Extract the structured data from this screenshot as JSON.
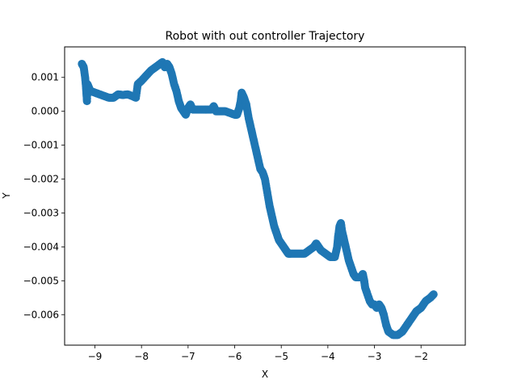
{
  "chart_data": {
    "type": "scatter",
    "title": "Robot with out controller Trajectory",
    "xlabel": "X",
    "ylabel": "Y",
    "xlim": [
      -9.65,
      -1.05
    ],
    "ylim": [
      -0.0069,
      0.0019
    ],
    "xticks": [
      -9,
      -8,
      -7,
      -6,
      -5,
      -4,
      -3,
      -2
    ],
    "xtick_labels": [
      "−9",
      "−8",
      "−7",
      "−6",
      "−5",
      "−4",
      "−3",
      "−2"
    ],
    "yticks": [
      0.001,
      0.0,
      -0.001,
      -0.002,
      -0.003,
      -0.004,
      -0.005,
      -0.006
    ],
    "ytick_labels": [
      "0.001",
      "0.000",
      "−0.001",
      "−0.002",
      "−0.003",
      "−0.004",
      "−0.005",
      "−0.006"
    ],
    "grid": false,
    "marker_color": "#1f77b4",
    "series": [
      {
        "points": [
          [
            -9.28,
            0.0014
          ],
          [
            -9.24,
            0.0013
          ],
          [
            -9.21,
            0.001
          ],
          [
            -9.19,
            0.0007
          ],
          [
            -9.18,
            0.0005
          ],
          [
            -9.17,
            0.0003
          ],
          [
            -9.16,
            0.0008
          ],
          [
            -9.13,
            0.0007
          ],
          [
            -9.1,
            0.0006
          ],
          [
            -9.0,
            0.00055
          ],
          [
            -8.9,
            0.0005
          ],
          [
            -8.8,
            0.00045
          ],
          [
            -8.7,
            0.0004
          ],
          [
            -8.6,
            0.0004
          ],
          [
            -8.5,
            0.0005
          ],
          [
            -8.4,
            0.00048
          ],
          [
            -8.3,
            0.0005
          ],
          [
            -8.2,
            0.00045
          ],
          [
            -8.12,
            0.0004
          ],
          [
            -8.08,
            0.0008
          ],
          [
            -8.0,
            0.0009
          ],
          [
            -7.9,
            0.00105
          ],
          [
            -7.8,
            0.0012
          ],
          [
            -7.7,
            0.0013
          ],
          [
            -7.6,
            0.0014
          ],
          [
            -7.55,
            0.00145
          ],
          [
            -7.5,
            0.0013
          ],
          [
            -7.45,
            0.0014
          ],
          [
            -7.4,
            0.0013
          ],
          [
            -7.35,
            0.0011
          ],
          [
            -7.3,
            0.0008
          ],
          [
            -7.25,
            0.0006
          ],
          [
            -7.2,
            0.0003
          ],
          [
            -7.15,
            0.0001
          ],
          [
            -7.1,
            0.0
          ],
          [
            -7.05,
            -0.0001
          ],
          [
            -7.0,
            0.0001
          ],
          [
            -6.95,
            0.0002
          ],
          [
            -6.9,
            5e-05
          ],
          [
            -6.8,
            5e-05
          ],
          [
            -6.7,
            5e-05
          ],
          [
            -6.6,
            5e-05
          ],
          [
            -6.5,
            5e-05
          ],
          [
            -6.45,
            0.00015
          ],
          [
            -6.4,
            0.0
          ],
          [
            -6.3,
            0.0
          ],
          [
            -6.2,
            0.0
          ],
          [
            -6.1,
            -5e-05
          ],
          [
            -6.0,
            -0.0001
          ],
          [
            -5.95,
            -0.0001
          ],
          [
            -5.9,
            0.0001
          ],
          [
            -5.87,
            0.0003
          ],
          [
            -5.85,
            0.00055
          ],
          [
            -5.8,
            0.0004
          ],
          [
            -5.75,
            0.0002
          ],
          [
            -5.7,
            -0.0002
          ],
          [
            -5.65,
            -0.0005
          ],
          [
            -5.6,
            -0.0008
          ],
          [
            -5.55,
            -0.0011
          ],
          [
            -5.5,
            -0.0014
          ],
          [
            -5.45,
            -0.0017
          ],
          [
            -5.4,
            -0.0018
          ],
          [
            -5.35,
            -0.002
          ],
          [
            -5.3,
            -0.0024
          ],
          [
            -5.25,
            -0.0028
          ],
          [
            -5.2,
            -0.0031
          ],
          [
            -5.15,
            -0.0034
          ],
          [
            -5.1,
            -0.0036
          ],
          [
            -5.05,
            -0.0038
          ],
          [
            -5.0,
            -0.0039
          ],
          [
            -4.95,
            -0.004
          ],
          [
            -4.9,
            -0.0041
          ],
          [
            -4.85,
            -0.0042
          ],
          [
            -4.8,
            -0.0042
          ],
          [
            -4.7,
            -0.0042
          ],
          [
            -4.6,
            -0.0042
          ],
          [
            -4.5,
            -0.0042
          ],
          [
            -4.4,
            -0.0041
          ],
          [
            -4.3,
            -0.004
          ],
          [
            -4.25,
            -0.0039
          ],
          [
            -4.2,
            -0.004
          ],
          [
            -4.15,
            -0.0041
          ],
          [
            -4.05,
            -0.0042
          ],
          [
            -3.95,
            -0.0043
          ],
          [
            -3.85,
            -0.0043
          ],
          [
            -3.8,
            -0.004
          ],
          [
            -3.78,
            -0.0037
          ],
          [
            -3.75,
            -0.0034
          ],
          [
            -3.72,
            -0.0033
          ],
          [
            -3.7,
            -0.0035
          ],
          [
            -3.65,
            -0.0038
          ],
          [
            -3.6,
            -0.0041
          ],
          [
            -3.55,
            -0.0044
          ],
          [
            -3.5,
            -0.0046
          ],
          [
            -3.45,
            -0.0048
          ],
          [
            -3.4,
            -0.0049
          ],
          [
            -3.3,
            -0.0049
          ],
          [
            -3.25,
            -0.0048
          ],
          [
            -3.22,
            -0.005
          ],
          [
            -3.2,
            -0.0052
          ],
          [
            -3.15,
            -0.0054
          ],
          [
            -3.1,
            -0.0056
          ],
          [
            -3.05,
            -0.0057
          ],
          [
            -3.0,
            -0.0057
          ],
          [
            -2.95,
            -0.0058
          ],
          [
            -2.9,
            -0.0057
          ],
          [
            -2.85,
            -0.0058
          ],
          [
            -2.8,
            -0.006
          ],
          [
            -2.75,
            -0.0063
          ],
          [
            -2.7,
            -0.0065
          ],
          [
            -2.6,
            -0.0066
          ],
          [
            -2.5,
            -0.0066
          ],
          [
            -2.4,
            -0.0065
          ],
          [
            -2.3,
            -0.0063
          ],
          [
            -2.2,
            -0.0061
          ],
          [
            -2.1,
            -0.0059
          ],
          [
            -2.0,
            -0.0058
          ],
          [
            -1.9,
            -0.0056
          ],
          [
            -1.8,
            -0.0055
          ],
          [
            -1.73,
            -0.0054
          ]
        ]
      }
    ]
  }
}
